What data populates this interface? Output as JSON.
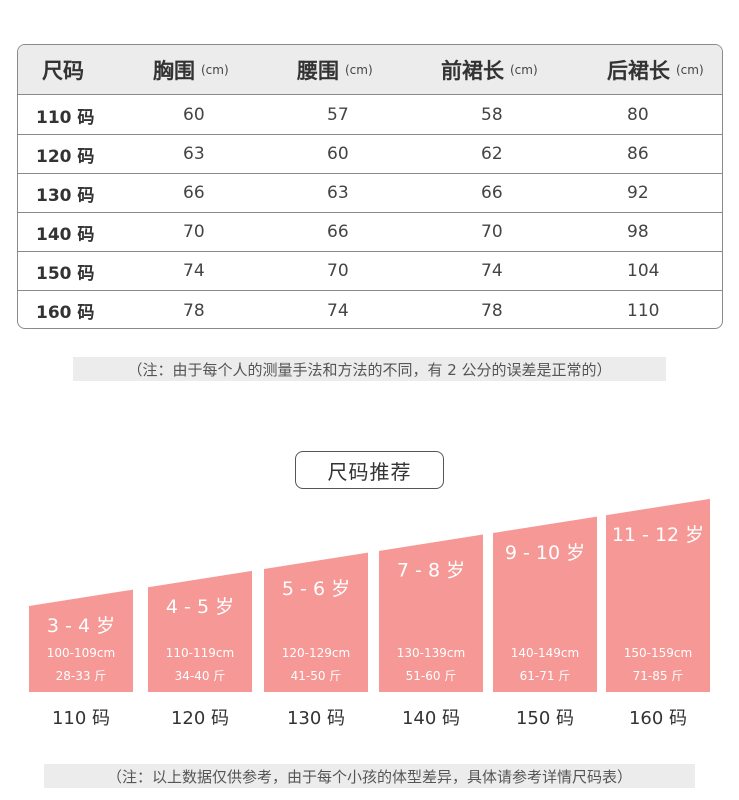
{
  "size_table": {
    "headers": [
      {
        "label": "尺码",
        "unit": ""
      },
      {
        "label": "胸围",
        "unit": "(cm)"
      },
      {
        "label": "腰围",
        "unit": "(cm)"
      },
      {
        "label": "前裙长",
        "unit": "(cm)"
      },
      {
        "label": "后裙长",
        "unit": "(cm)"
      }
    ],
    "rows": [
      [
        "110 码",
        "60",
        "57",
        "58",
        "80"
      ],
      [
        "120 码",
        "63",
        "60",
        "62",
        "86"
      ],
      [
        "130 码",
        "66",
        "63",
        "66",
        "92"
      ],
      [
        "140 码",
        "70",
        "66",
        "70",
        "98"
      ],
      [
        "150 码",
        "74",
        "70",
        "74",
        "104"
      ],
      [
        "160 码",
        "78",
        "74",
        "78",
        "110"
      ]
    ]
  },
  "measure_note": "（注：由于每个人的测量手法和方法的不同，有 2 公分的误差是正常的）",
  "recommendation": {
    "title": "尺码推荐",
    "bar_color": "#f59896",
    "items": [
      {
        "age": "3 - 4 岁",
        "height": "100-109cm",
        "weight": "28-33 斤",
        "size": "110 码"
      },
      {
        "age": "4 - 5 岁",
        "height": "110-119cm",
        "weight": "34-40 斤",
        "size": "120 码"
      },
      {
        "age": "5 - 6 岁",
        "height": "120-129cm",
        "weight": "41-50 斤",
        "size": "130 码"
      },
      {
        "age": "7 - 8 岁",
        "height": "130-139cm",
        "weight": "51-60 斤",
        "size": "140 码"
      },
      {
        "age": "9 - 10 岁",
        "height": "140-149cm",
        "weight": "61-71 斤",
        "size": "150 码"
      },
      {
        "age": "11 - 12 岁",
        "height": "150-159cm",
        "weight": "71-85 斤",
        "size": "160 码"
      }
    ]
  },
  "reference_note": "（注：以上数据仅供参考，由于每个小孩的体型差异，具体请参考详情尺码表）"
}
